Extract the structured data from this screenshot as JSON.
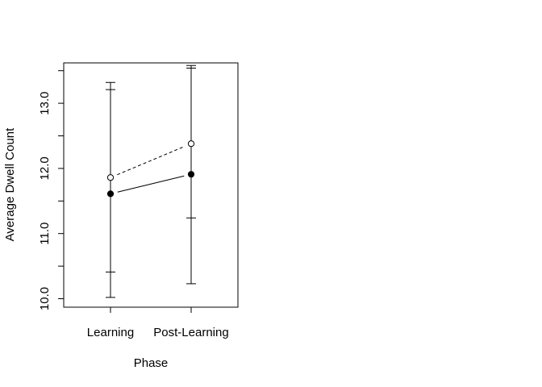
{
  "chart_data": {
    "type": "line",
    "xlabel": "Phase",
    "ylabel": "Average Dwell Count",
    "categories": [
      "Learning",
      "Post-Learning"
    ],
    "ylim": [
      9.87,
      13.62
    ],
    "yticks": [
      10.0,
      10.5,
      11.0,
      11.5,
      12.0,
      12.5,
      13.0,
      13.5
    ],
    "ytick_labels": [
      "10.0",
      "",
      "11.0",
      "",
      "12.0",
      "",
      "13.0",
      ""
    ],
    "grid": false,
    "legend": "none",
    "series": [
      {
        "marker": "filled-circle",
        "line_style": "solid",
        "values": [
          11.61,
          11.91
        ],
        "error_low": [
          10.02,
          10.23
        ],
        "error_high": [
          13.21,
          13.58
        ]
      },
      {
        "marker": "open-circle",
        "line_style": "dashed",
        "values": [
          11.86,
          12.38
        ],
        "error_low": [
          10.41,
          11.24
        ],
        "error_high": [
          13.32,
          13.54
        ]
      }
    ]
  }
}
